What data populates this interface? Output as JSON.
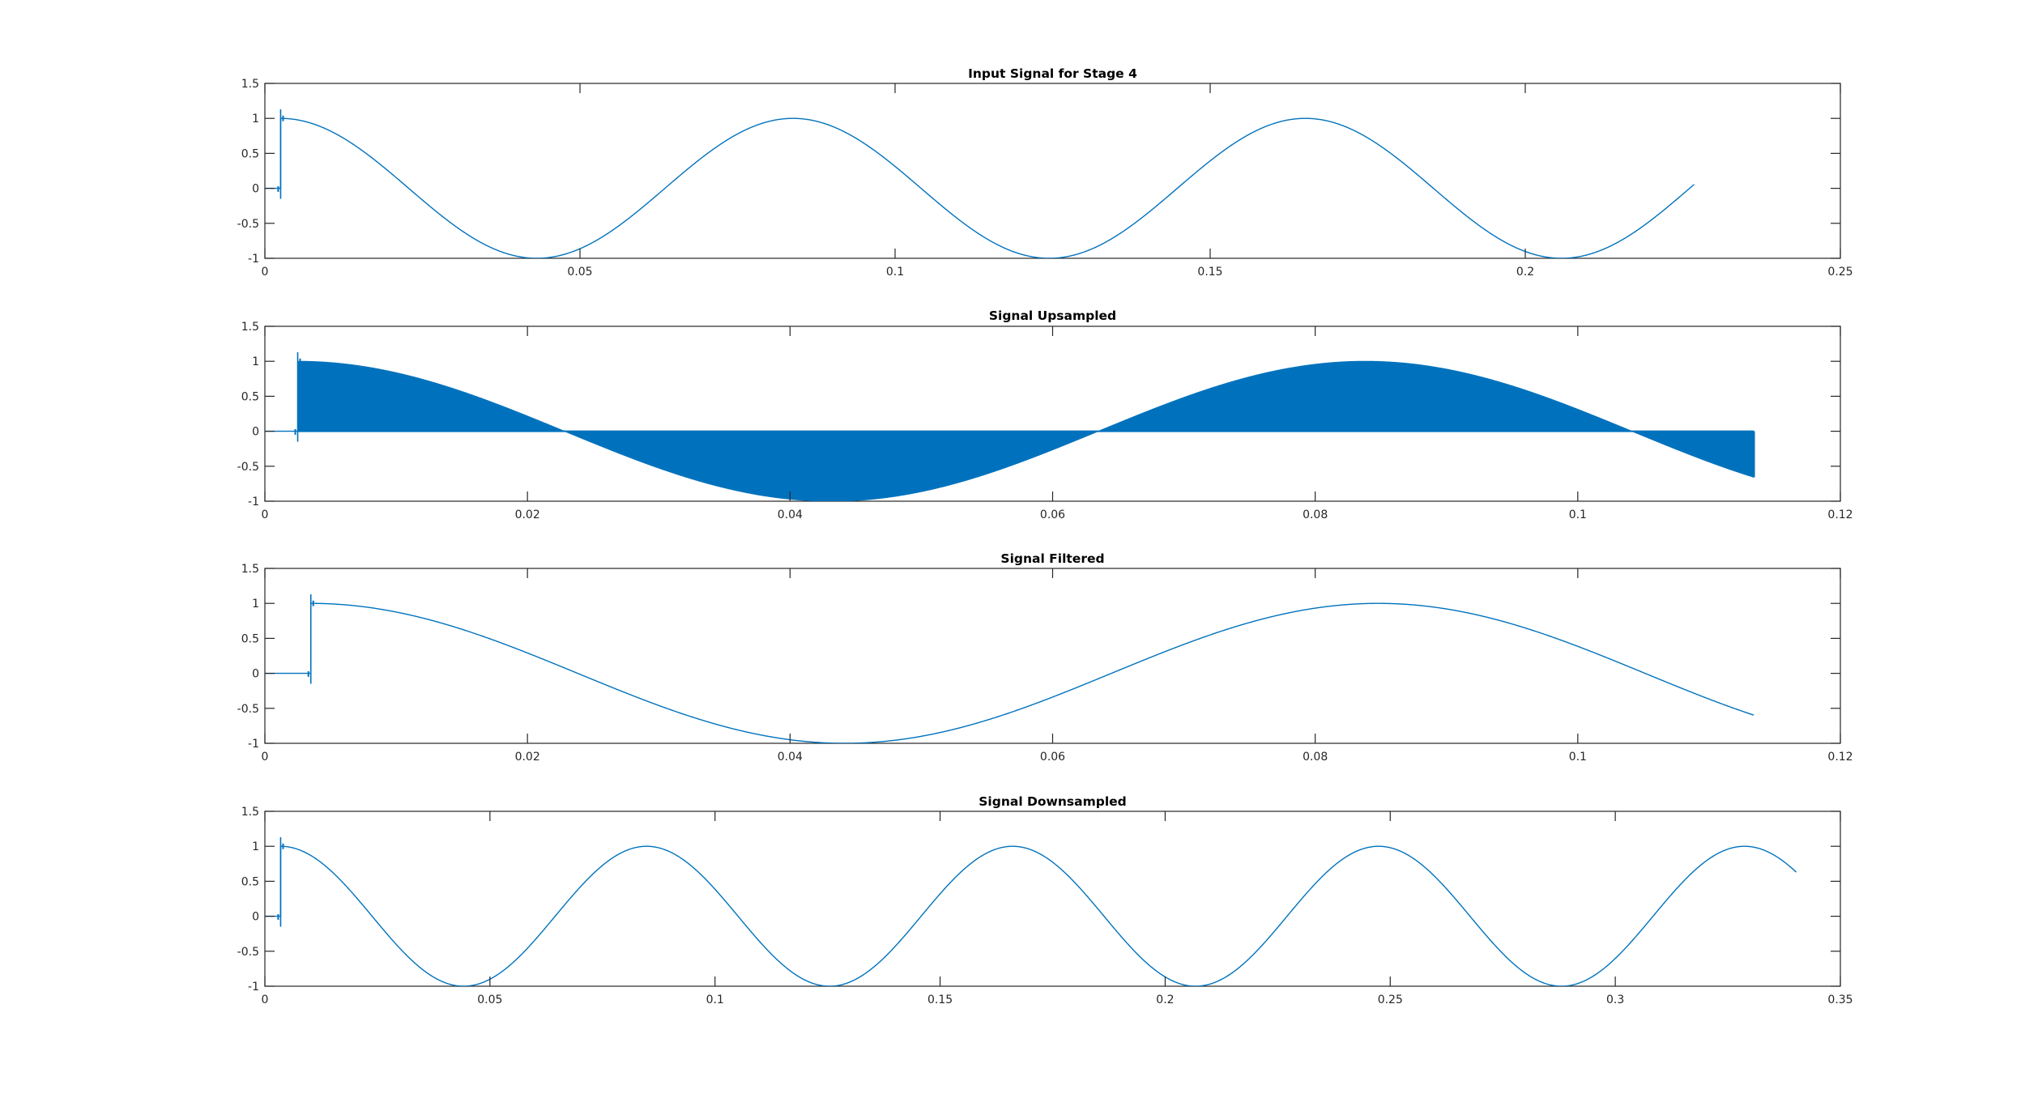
{
  "chart_data": [
    {
      "type": "line",
      "title": "Input Signal for Stage 4",
      "xlabel": "",
      "ylabel": "",
      "xlim": [
        0,
        0.25
      ],
      "ylim": [
        -1,
        1.5
      ],
      "xticks": [
        0,
        0.05,
        0.1,
        0.15,
        0.2,
        0.25
      ],
      "xtick_labels": [
        "0",
        "0.05",
        "0.1",
        "0.15",
        "0.2",
        "0.25"
      ],
      "yticks": [
        -1,
        -0.5,
        0,
        0.5,
        1,
        1.5
      ],
      "ytick_labels": [
        "-1",
        "-0.5",
        "0",
        "0.5",
        "1",
        "1.5"
      ],
      "grid": false,
      "series": [
        {
          "color": "#0072BD",
          "style": "line",
          "onset": 0.0025,
          "end": 0.2268,
          "frequency_hz": 12.3,
          "overshoot": 1.13,
          "x": [
            0,
            0.0025,
            0.0025,
            0.02,
            0.042,
            0.063,
            0.083,
            0.104,
            0.124,
            0.145,
            0.165,
            0.185,
            0.206,
            0.2268
          ],
          "y": [
            0,
            0,
            1,
            0.33,
            -1,
            0,
            1,
            0,
            -1,
            0,
            1,
            0,
            -1,
            0.12
          ]
        }
      ]
    },
    {
      "type": "area",
      "title": "Signal Upsampled",
      "xlabel": "",
      "ylabel": "",
      "xlim": [
        0,
        0.12
      ],
      "ylim": [
        -1,
        1.5
      ],
      "xticks": [
        0,
        0.02,
        0.04,
        0.06,
        0.08,
        0.1,
        0.12
      ],
      "xtick_labels": [
        "0",
        "0.02",
        "0.04",
        "0.06",
        "0.08",
        "0.1",
        "0.12"
      ],
      "yticks": [
        -1,
        -0.5,
        0,
        0.5,
        1,
        1.5
      ],
      "ytick_labels": [
        "-1",
        "-0.5",
        "0",
        "0.5",
        "1",
        "1.5"
      ],
      "grid": false,
      "series": [
        {
          "color": "#0072BD",
          "style": "dense-fill",
          "onset": 0.0025,
          "end": 0.1134,
          "frequency_hz": 12.3,
          "overshoot": 1.13,
          "x": [
            0,
            0.0025,
            0.0025,
            0.023,
            0.043,
            0.063,
            0.083,
            0.104,
            0.1134
          ],
          "y": [
            0,
            0,
            1,
            0,
            -1,
            0,
            1,
            0,
            -0.65
          ]
        }
      ]
    },
    {
      "type": "line",
      "title": "Signal Filtered",
      "xlabel": "",
      "ylabel": "",
      "xlim": [
        0,
        0.12
      ],
      "ylim": [
        -1,
        1.5
      ],
      "xticks": [
        0,
        0.02,
        0.04,
        0.06,
        0.08,
        0.1,
        0.12
      ],
      "xtick_labels": [
        "0",
        "0.02",
        "0.04",
        "0.06",
        "0.08",
        "0.1",
        "0.12"
      ],
      "yticks": [
        -1,
        -0.5,
        0,
        0.5,
        1,
        1.5
      ],
      "ytick_labels": [
        "-1",
        "-0.5",
        "0",
        "0.5",
        "1",
        "1.5"
      ],
      "grid": false,
      "series": [
        {
          "color": "#0072BD",
          "style": "line",
          "onset": 0.0035,
          "end": 0.1134,
          "frequency_hz": 12.3,
          "overshoot": 1.13,
          "x": [
            0,
            0.0035,
            0.0035,
            0.024,
            0.045,
            0.065,
            0.085,
            0.1134
          ],
          "y": [
            0,
            0,
            1,
            0.25,
            -1,
            0,
            1,
            -0.58
          ]
        }
      ]
    },
    {
      "type": "line",
      "title": "Signal Downsampled",
      "xlabel": "",
      "ylabel": "",
      "xlim": [
        0,
        0.35
      ],
      "ylim": [
        -1,
        1.5
      ],
      "xticks": [
        0,
        0.05,
        0.1,
        0.15,
        0.2,
        0.25,
        0.3,
        0.35
      ],
      "xtick_labels": [
        "0",
        "0.05",
        "0.1",
        "0.15",
        "0.2",
        "0.25",
        "0.3",
        "0.35"
      ],
      "yticks": [
        -1,
        -0.5,
        0,
        0.5,
        1,
        1.5
      ],
      "ytick_labels": [
        "-1",
        "-0.5",
        "0",
        "0.5",
        "1",
        "1.5"
      ],
      "grid": false,
      "series": [
        {
          "color": "#0072BD",
          "style": "line",
          "onset": 0.0035,
          "end": 0.3402,
          "frequency_hz": 12.3,
          "overshoot": 1.13,
          "x": [
            0,
            0.0035,
            0.0035,
            0.044,
            0.085,
            0.125,
            0.166,
            0.207,
            0.247,
            0.288,
            0.328,
            0.3402
          ],
          "y": [
            0,
            0,
            1,
            -1,
            1,
            -1,
            1,
            -1,
            1,
            -1,
            1,
            0.48
          ]
        }
      ]
    }
  ]
}
